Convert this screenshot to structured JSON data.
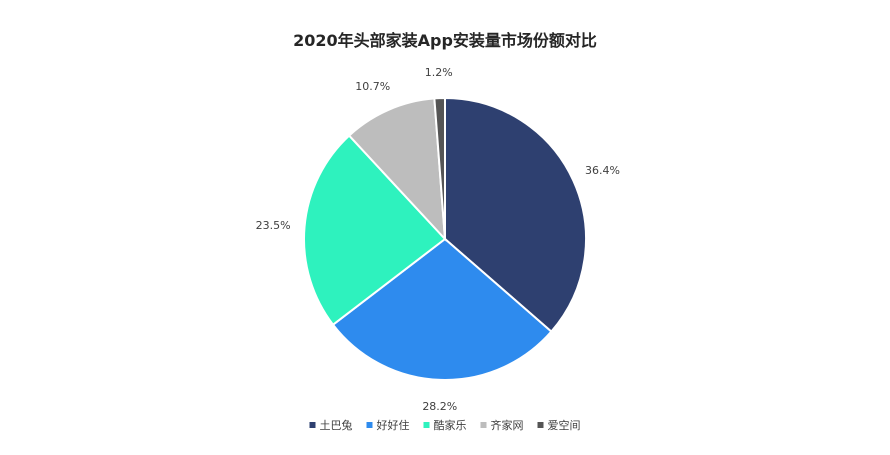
{
  "chart_data": {
    "type": "pie",
    "title": "2020年头部家装App安装量市场份额对比",
    "categories": [
      "土巴兔",
      "好好住",
      "酷家乐",
      "齐家网",
      "爱空间"
    ],
    "values": [
      36.4,
      28.2,
      23.5,
      10.7,
      1.2
    ],
    "data_labels": [
      "36.4%",
      "28.2%",
      "23.5%",
      "10.7%",
      "1.2%"
    ],
    "colors": [
      "#2E4070",
      "#2E8BEE",
      "#2EF2BE",
      "#BDBDBD",
      "#555555"
    ],
    "legend_position": "bottom",
    "start_angle": "12 o'clock, clockwise"
  }
}
